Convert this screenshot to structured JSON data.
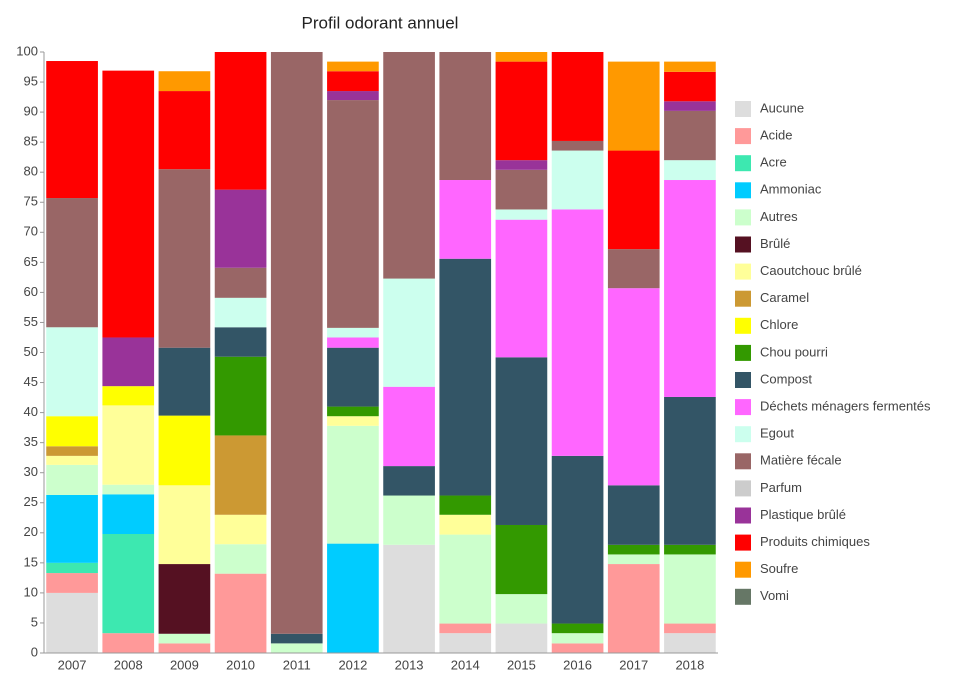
{
  "chart_data": {
    "type": "stacked_bar",
    "title": "Profil odorant annuel",
    "categories": [
      "2007",
      "2008",
      "2009",
      "2010",
      "2011",
      "2012",
      "2013",
      "2014",
      "2015",
      "2016",
      "2017",
      "2018"
    ],
    "ylim": [
      0,
      100
    ],
    "yticks": [
      0,
      5,
      10,
      15,
      20,
      25,
      30,
      35,
      40,
      45,
      50,
      55,
      60,
      65,
      70,
      75,
      80,
      85,
      90,
      95,
      100
    ],
    "legend": "right",
    "series": [
      {
        "name": "Aucune",
        "color": "#dddddd",
        "values": [
          10,
          0,
          0,
          0,
          0,
          0,
          18,
          3.3,
          4.9,
          0,
          0,
          3.3
        ]
      },
      {
        "name": "Acide",
        "color": "#ff9999",
        "values": [
          3.3,
          3.3,
          1.6,
          13.2,
          0,
          0,
          0,
          1.6,
          0,
          1.6,
          14.8,
          1.6
        ]
      },
      {
        "name": "Acre",
        "color": "#3de8b0",
        "values": [
          1.7,
          16.5,
          0,
          0,
          0,
          0,
          0,
          0,
          0,
          0,
          0,
          0
        ]
      },
      {
        "name": "Ammoniac",
        "color": "#00ccff",
        "values": [
          11.3,
          6.6,
          0,
          0,
          0,
          18.2,
          0,
          0,
          0,
          0,
          0,
          0
        ]
      },
      {
        "name": "Autres",
        "color": "#ccffcc",
        "values": [
          5,
          1.6,
          1.6,
          4.9,
          1.6,
          19.6,
          8.2,
          14.8,
          4.9,
          1.7,
          1.6,
          11.5
        ]
      },
      {
        "name": "Brûlé",
        "color": "#551122",
        "values": [
          0,
          0,
          11.6,
          0,
          0,
          0,
          0,
          0,
          0,
          0,
          0,
          0
        ]
      },
      {
        "name": "Caoutchouc brûlé",
        "color": "#ffff99",
        "values": [
          1.5,
          13.2,
          13.1,
          4.9,
          0,
          1.6,
          0,
          3.3,
          0,
          0,
          0,
          0
        ]
      },
      {
        "name": "Caramel",
        "color": "#cc9933",
        "values": [
          1.6,
          0,
          0,
          13.2,
          0,
          0,
          0,
          0,
          0,
          0,
          0,
          0
        ]
      },
      {
        "name": "Chlore",
        "color": "#ffff00",
        "values": [
          5,
          3.2,
          11.6,
          0,
          0,
          0,
          0,
          0,
          0,
          0,
          0,
          0
        ]
      },
      {
        "name": "Chou pourri",
        "color": "#339900",
        "values": [
          0,
          0,
          0,
          13.1,
          0,
          1.6,
          0,
          3.2,
          11.5,
          1.6,
          1.6,
          1.6
        ]
      },
      {
        "name": "Compost",
        "color": "#335566",
        "values": [
          0,
          0,
          11.3,
          4.9,
          1.6,
          9.8,
          4.9,
          39.4,
          27.9,
          27.9,
          9.9,
          24.6
        ]
      },
      {
        "name": "Déchets ménagers fermentés",
        "color": "#ff66ff",
        "values": [
          0,
          0,
          0,
          0,
          0,
          1.7,
          13.2,
          13.1,
          22.9,
          41,
          32.8,
          36.1
        ]
      },
      {
        "name": "Egout",
        "color": "#ccffee",
        "values": [
          14.8,
          0,
          0,
          4.9,
          0,
          1.6,
          18,
          0,
          1.7,
          9.8,
          0,
          3.3
        ]
      },
      {
        "name": "Matière fécale",
        "color": "#996666",
        "values": [
          21.5,
          0,
          29.7,
          5,
          96.8,
          37.9,
          37.7,
          21.3,
          6.6,
          1.6,
          6.5,
          8.2
        ]
      },
      {
        "name": "Parfum",
        "color": "#cccccc",
        "values": [
          0,
          0,
          0,
          0,
          0,
          0,
          0,
          0,
          0,
          0,
          0,
          0
        ]
      },
      {
        "name": "Plastique brûlé",
        "color": "#993399",
        "values": [
          0,
          8.1,
          0,
          13,
          0,
          1.5,
          0,
          0,
          1.6,
          0,
          0,
          1.6
        ]
      },
      {
        "name": "Produits chimiques",
        "color": "#ff0000",
        "values": [
          22.8,
          44.4,
          13,
          22.9,
          0,
          3.3,
          0,
          0,
          16.4,
          14.8,
          16.4,
          4.9
        ]
      },
      {
        "name": "Soufre",
        "color": "#ff9900",
        "values": [
          0,
          0,
          3.3,
          0,
          0,
          1.6,
          0,
          0,
          1.6,
          0,
          14.8,
          1.7
        ]
      },
      {
        "name": "Vomi",
        "color": "#667766",
        "values": [
          0,
          0,
          0,
          0,
          0,
          0,
          0,
          0,
          0,
          0,
          0,
          0
        ]
      }
    ]
  }
}
